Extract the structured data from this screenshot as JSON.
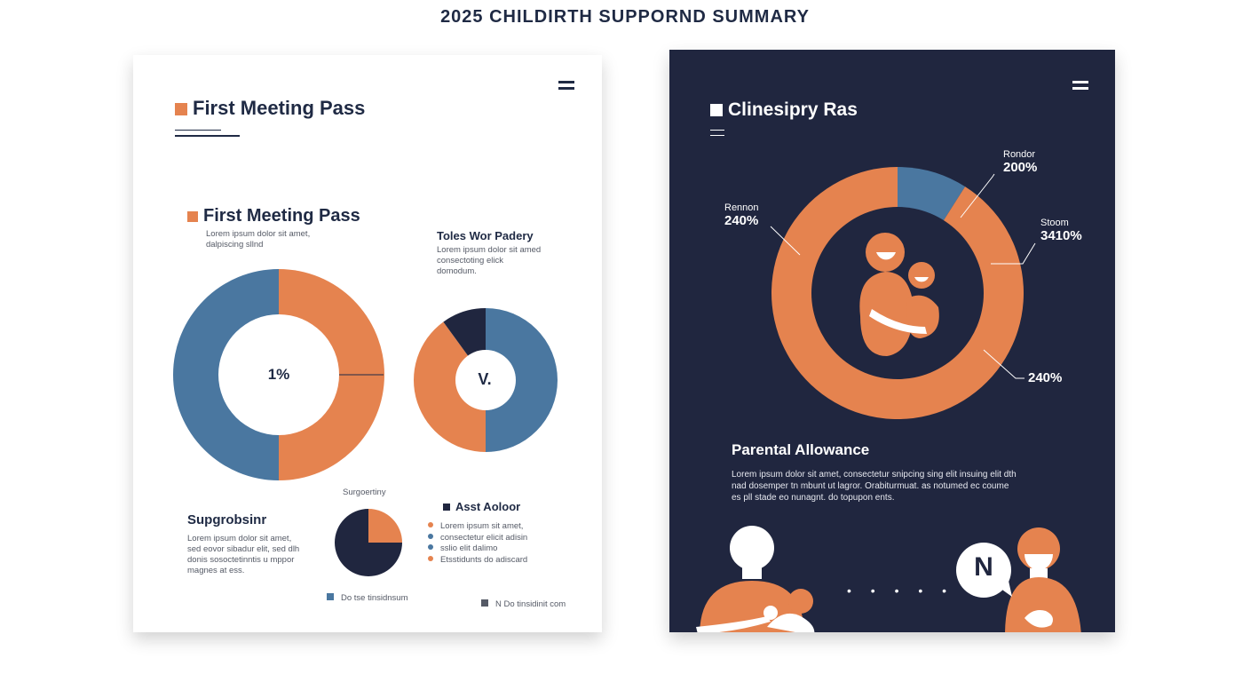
{
  "page_title": "2025 CHILDIRTH SUPPORND SUMMARY",
  "colors": {
    "orange": "#e5834f",
    "blue": "#4a77a0",
    "navy": "#20263f",
    "white": "#ffffff"
  },
  "left_card": {
    "header": "First Meeting Pass",
    "section_title": "First Meeting Pass",
    "section_text": [
      "Lorem ipsum dolor sit amet,",
      "dalpiscing sllnd"
    ],
    "secondary_title": "Toles Wor Padery",
    "secondary_text": [
      "Lorem ipsum dolor sit amed",
      "consectoting elick",
      "domodum."
    ],
    "bottom_title": "Supgrobsinr",
    "bottom_text": [
      "Lorem ipsum dolor sit amet,",
      "sed eovor sibadur elit, sed dlh",
      "donis sosoctetinntis u mppor",
      "magnes at ess."
    ],
    "small_pie_label": "Surgoertiny",
    "legend_title": "Asst Aoloor",
    "legend_items": [
      "Lorem ipsum sit amet,",
      "consectetur elicit adisin",
      "sslio elit dalimo",
      "Etsstidunts do adiscard"
    ],
    "footer_left": "Do tse tinsidnsum",
    "footer_right": "N Do tinsidinit com"
  },
  "right_card": {
    "header": "Clinesipry Ras",
    "callouts": [
      {
        "label": "Rondor",
        "value": "200%"
      },
      {
        "label": "Rennon",
        "value": "240%"
      },
      {
        "label": "Stoom",
        "value": "3410%"
      },
      {
        "label": "",
        "value": "240%"
      }
    ],
    "section_title": "Parental Allowance",
    "section_text": [
      "Lorem ipsum dolor sit amet, consectetur snipcing sing elit insuing elit dth",
      "nad dosemper tn mbunt ut lagror. Orabiturmuat. as notumed ec coume",
      "es pll stade eo nunagnt. do topupon ents."
    ],
    "badge_text": "N",
    "dots": "• • • • •"
  },
  "chart_data": [
    {
      "type": "pie",
      "title": "First Meeting Pass",
      "categories": [
        "Orange",
        "Blue"
      ],
      "values": [
        50,
        50
      ],
      "center_label": "1%"
    },
    {
      "type": "pie",
      "title": "Toles Wor Padery",
      "categories": [
        "Blue",
        "Orange",
        "Navy"
      ],
      "values": [
        50,
        40,
        10
      ],
      "center_label": "V."
    },
    {
      "type": "pie",
      "title": "Surgoertiny",
      "categories": [
        "Orange",
        "Navy"
      ],
      "values": [
        25,
        75
      ]
    },
    {
      "type": "pie",
      "title": "Clinesipry Ras",
      "categories": [
        "Blue",
        "Orange"
      ],
      "values": [
        9,
        91
      ]
    }
  ]
}
